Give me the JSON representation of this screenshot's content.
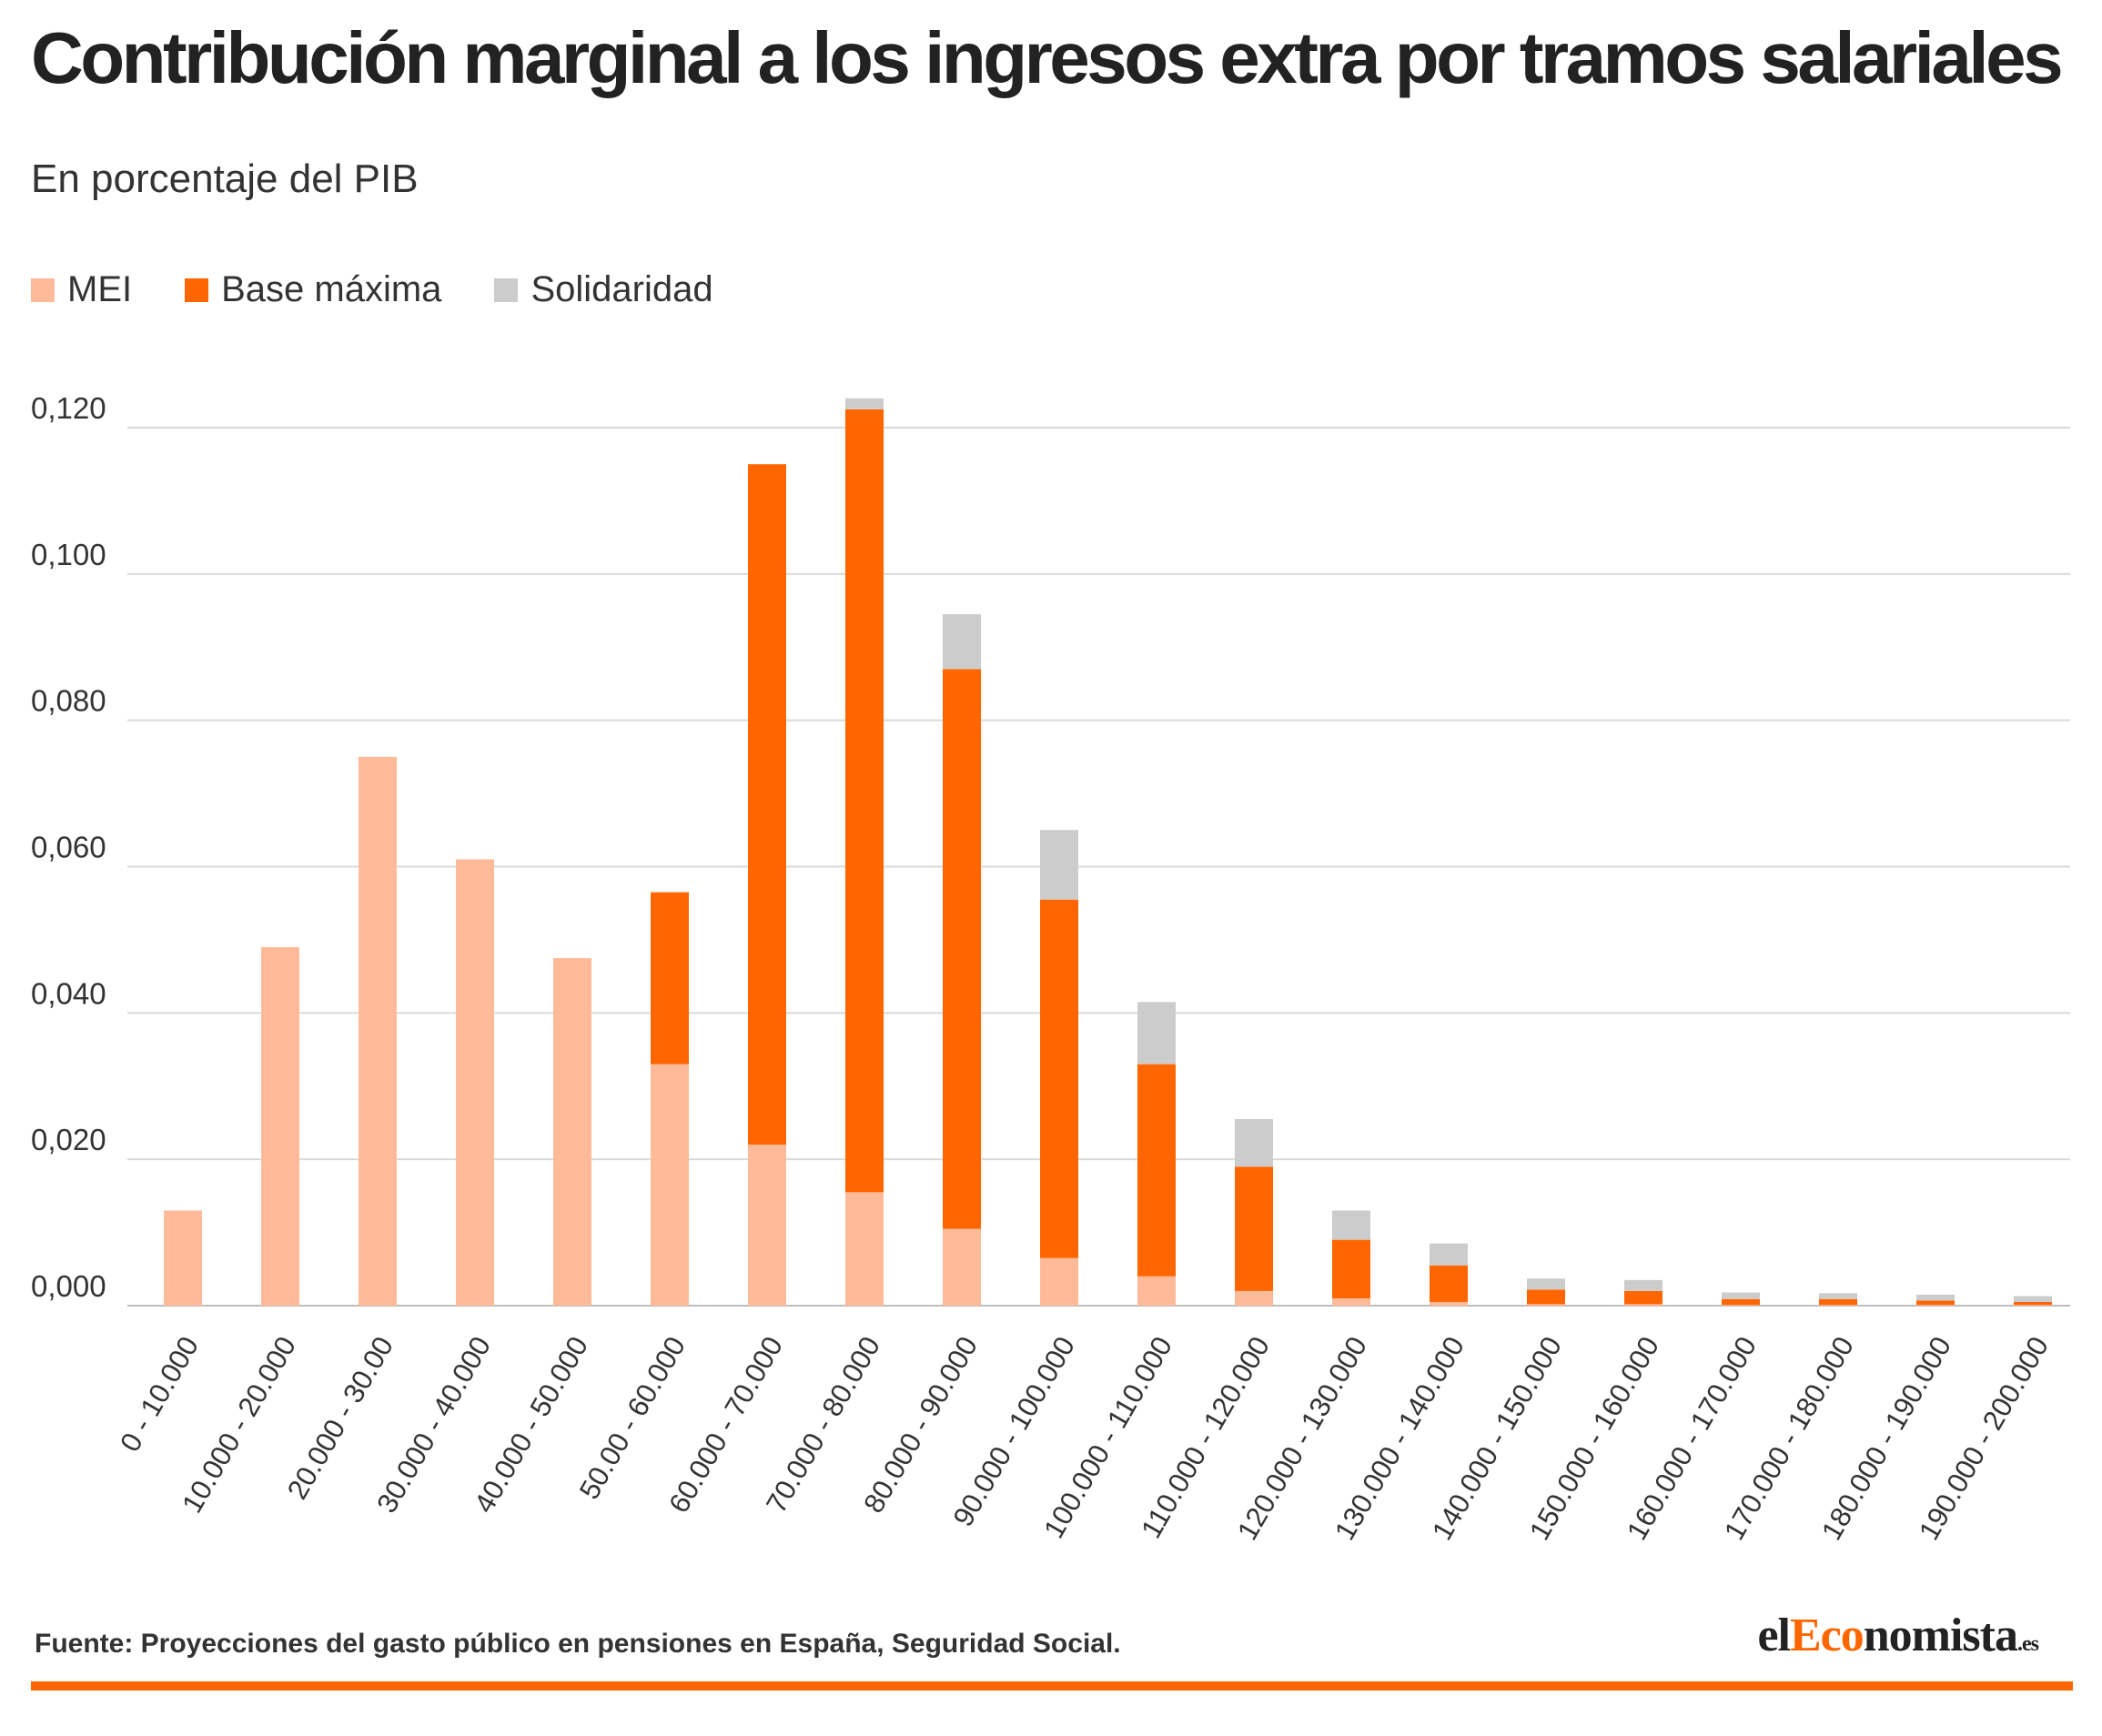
{
  "title": "Contribución marginal a los ingresos extra por tramos salariales",
  "subtitle": "En porcentaje del PIB",
  "source": "Fuente: Proyecciones del gasto público en pensiones en España, Seguridad Social.",
  "logo": {
    "part1": "el",
    "part2": "Eco",
    "part3": "nomista",
    "tld": ".es"
  },
  "colors": {
    "mei": "#ffbb99",
    "base": "#ff6600",
    "solidaridad": "#cccccc",
    "accent": "#ff6600",
    "grid": "#d9d9d9"
  },
  "chart_data": {
    "type": "bar",
    "stacked": true,
    "title": "Contribución marginal a los ingresos extra por tramos salariales",
    "subtitle": "En porcentaje del PIB",
    "ylim": [
      0,
      0.12
    ],
    "yticks": [
      "0,000",
      "0,020",
      "0,040",
      "0,060",
      "0,080",
      "0,100",
      "0,120"
    ],
    "grid": true,
    "legend_position": "top-left",
    "categories": [
      "0 - 10.000",
      "10.000 - 20.000",
      "20.000 - 30.00",
      "30.000 - 40.000",
      "40.000 - 50.000",
      "50.00 - 60.000",
      "60.000 - 70.000",
      "70.000 - 80.000",
      "80.000 - 90.000",
      "90.000 - 100.000",
      "100.000 - 110.000",
      "110.000 - 120.000",
      "120.000 - 130.000",
      "130.000 - 140.000",
      "140.000 - 150.000",
      "150.000 - 160.000",
      "160.000 - 170.000",
      "170.000 - 180.000",
      "180.000 - 190.000",
      "190.000 - 200.000"
    ],
    "series": [
      {
        "name": "MEI",
        "values": [
          0.013,
          0.049,
          0.075,
          0.061,
          0.0475,
          0.033,
          0.022,
          0.0155,
          0.0105,
          0.0065,
          0.004,
          0.002,
          0.001,
          0.0005,
          0.0002,
          0.0002,
          0.0001,
          0.0001,
          0.0001,
          0.0001
        ]
      },
      {
        "name": "Base máxima",
        "values": [
          0,
          0,
          0,
          0,
          0,
          0.0235,
          0.093,
          0.107,
          0.0765,
          0.049,
          0.029,
          0.017,
          0.008,
          0.005,
          0.002,
          0.0018,
          0.0008,
          0.0008,
          0.0006,
          0.0004
        ]
      },
      {
        "name": "Solidaridad",
        "values": [
          0,
          0,
          0,
          0,
          0,
          0,
          0,
          0.0015,
          0.0075,
          0.0095,
          0.0085,
          0.0065,
          0.004,
          0.003,
          0.0015,
          0.0015,
          0.0009,
          0.0008,
          0.0008,
          0.0008
        ]
      }
    ]
  }
}
